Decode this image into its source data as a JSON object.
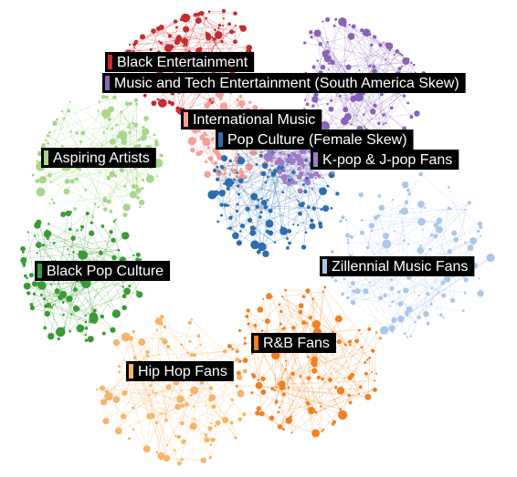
{
  "clusters": [
    {
      "label": "Black Entertainment",
      "color": "#c62b2f"
    },
    {
      "label": "Music and Tech Entertainment (South America Skew)",
      "color": "#8a63b8"
    },
    {
      "label": "International Music",
      "color": "#f2a29c"
    },
    {
      "label": "Pop Culture (Female Skew)",
      "color": "#2e6db0"
    },
    {
      "label": "K-pop & J-pop Fans",
      "color": "#a07cc8"
    },
    {
      "label": "Aspiring Artists",
      "color": "#a8d68c"
    },
    {
      "label": "Black Pop Culture",
      "color": "#3a9b35"
    },
    {
      "label": "Zillennial Music Fans",
      "color": "#aec7e8"
    },
    {
      "label": "R&B Fans",
      "color": "#f08022"
    },
    {
      "label": "Hip Hop Fans",
      "color": "#f7b46c"
    }
  ]
}
